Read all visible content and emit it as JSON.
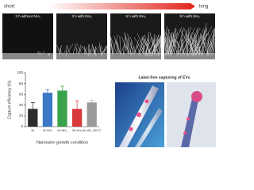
{
  "header": {
    "left": "short",
    "right": "long"
  },
  "panels": [
    {
      "label": "3 h without NH₃"
    },
    {
      "label": "3 h with NH₃"
    },
    {
      "label": "6 h with NH₃"
    },
    {
      "label": "9 h with NH₃"
    }
  ],
  "inset": {
    "title": "Label-free capturing of EVs"
  },
  "chart_data": {
    "type": "bar",
    "ylabel": "Capture efficiency (%)",
    "xlabel": "Nanowire growth condition",
    "categories": [
      "3h",
      "3h NH₃",
      "6h NH₃",
      "9h NH₃",
      "6h NH₃ 300°C"
    ],
    "values": [
      33,
      63,
      67,
      33,
      45
    ],
    "errors": [
      12,
      6,
      8,
      15,
      4
    ],
    "colors": [
      "#2b2b2b",
      "#3b78c6",
      "#3aa34a",
      "#d8383a",
      "#9a9a9a"
    ],
    "ylim": [
      0,
      100
    ],
    "yticks": [
      0,
      20,
      40,
      60,
      80,
      100
    ]
  }
}
